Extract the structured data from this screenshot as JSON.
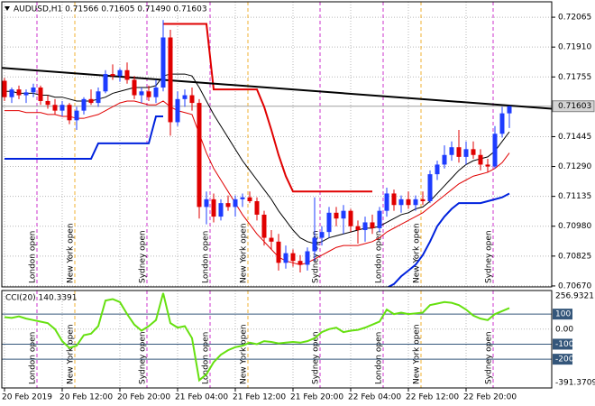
{
  "chart_data": [
    {
      "type": "candlestick",
      "title": "AUDUSD,H1  0.71566 0.71605 0.71490 0.71603",
      "open": [
        0.71735,
        0.7165,
        0.7169,
        0.7166,
        0.71675,
        0.717,
        0.7163,
        0.7161,
        0.7158,
        0.7161,
        0.7153,
        0.7158,
        0.7164,
        0.7162,
        0.7168,
        0.7177,
        0.7176,
        0.7179,
        0.7174,
        0.7166,
        0.7168,
        0.7165,
        0.717,
        0.7196,
        0.7152,
        0.7164,
        0.7166,
        0.7162,
        0.7108,
        0.7112,
        0.7103,
        0.711,
        0.7108,
        0.7112,
        0.7113,
        0.7111,
        0.7104,
        0.7092,
        0.709,
        0.7079,
        0.7084,
        0.708,
        0.7078,
        0.7085,
        0.7092,
        0.7095,
        0.7105,
        0.7102,
        0.7106,
        0.7098,
        0.7096,
        0.71,
        0.7097,
        0.7106,
        0.7115,
        0.7109,
        0.7112,
        0.7109,
        0.7112,
        0.7111,
        0.7125,
        0.713,
        0.7135,
        0.7139,
        0.7134,
        0.7138,
        0.7135,
        0.713,
        0.7129,
        0.7146,
        0.71566
      ],
      "high": [
        0.7175,
        0.717,
        0.7171,
        0.7169,
        0.7172,
        0.7171,
        0.7166,
        0.7164,
        0.7163,
        0.7162,
        0.716,
        0.7165,
        0.7169,
        0.717,
        0.7179,
        0.7182,
        0.718,
        0.7183,
        0.7176,
        0.717,
        0.7171,
        0.7174,
        0.7205,
        0.72,
        0.7168,
        0.7169,
        0.717,
        0.7164,
        0.7116,
        0.7115,
        0.7112,
        0.7114,
        0.7114,
        0.7115,
        0.7116,
        0.7113,
        0.7106,
        0.7096,
        0.7094,
        0.7088,
        0.7086,
        0.7083,
        0.7087,
        0.7113,
        0.7098,
        0.7108,
        0.7108,
        0.7109,
        0.7107,
        0.7101,
        0.7103,
        0.7104,
        0.7108,
        0.7118,
        0.7117,
        0.7114,
        0.7116,
        0.7114,
        0.7116,
        0.7127,
        0.7132,
        0.714,
        0.7142,
        0.7148,
        0.7142,
        0.7142,
        0.7138,
        0.7133,
        0.715,
        0.716,
        0.71605
      ],
      "low": [
        0.7163,
        0.7162,
        0.7164,
        0.7162,
        0.7165,
        0.7161,
        0.7159,
        0.7156,
        0.7155,
        0.7151,
        0.7148,
        0.7156,
        0.7161,
        0.716,
        0.7167,
        0.7174,
        0.7173,
        0.7172,
        0.7164,
        0.7162,
        0.7163,
        0.7162,
        0.7168,
        0.7145,
        0.715,
        0.716,
        0.7158,
        0.7102,
        0.7099,
        0.71,
        0.7101,
        0.7106,
        0.7103,
        0.7108,
        0.711,
        0.7101,
        0.7088,
        0.7086,
        0.7075,
        0.7076,
        0.7077,
        0.7074,
        0.7075,
        0.708,
        0.7088,
        0.7092,
        0.7098,
        0.7094,
        0.7095,
        0.7089,
        0.709,
        0.7094,
        0.7095,
        0.7103,
        0.7106,
        0.7105,
        0.7107,
        0.7106,
        0.7109,
        0.711,
        0.7122,
        0.7128,
        0.7132,
        0.7131,
        0.713,
        0.7133,
        0.7127,
        0.7126,
        0.7128,
        0.7144,
        0.7149
      ],
      "close": [
        0.7165,
        0.7169,
        0.7166,
        0.71675,
        0.717,
        0.7163,
        0.7161,
        0.7158,
        0.7161,
        0.7153,
        0.7158,
        0.7164,
        0.7162,
        0.7168,
        0.7177,
        0.7176,
        0.7179,
        0.7174,
        0.7166,
        0.7168,
        0.7165,
        0.717,
        0.7196,
        0.7152,
        0.7164,
        0.7166,
        0.7162,
        0.7108,
        0.7112,
        0.7103,
        0.711,
        0.7108,
        0.7112,
        0.7113,
        0.7111,
        0.7104,
        0.7092,
        0.709,
        0.7079,
        0.7084,
        0.708,
        0.7078,
        0.7085,
        0.7092,
        0.7095,
        0.7105,
        0.7102,
        0.7106,
        0.7098,
        0.7096,
        0.71,
        0.7097,
        0.7106,
        0.7115,
        0.7109,
        0.7112,
        0.7109,
        0.7112,
        0.7111,
        0.7125,
        0.713,
        0.7135,
        0.7139,
        0.7134,
        0.7138,
        0.7135,
        0.713,
        0.7129,
        0.7146,
        0.71566,
        0.71603
      ],
      "up_color": "#1e3cff",
      "down_color": "#e00000",
      "last_price": 0.71603,
      "overlays": [
        {
          "color": "#000000",
          "width": 1,
          "values": [
            0.7168,
            0.7168,
            0.7167,
            0.7167,
            0.7167,
            0.7166,
            0.7166,
            0.7165,
            0.7165,
            0.7164,
            0.7163,
            0.7163,
            0.7163,
            0.7164,
            0.7165,
            0.7167,
            0.7168,
            0.7169,
            0.717,
            0.717,
            0.717,
            0.7171,
            0.7176,
            0.7177,
            0.7177,
            0.7177,
            0.7176,
            0.717,
            0.7163,
            0.7156,
            0.715,
            0.7144,
            0.7138,
            0.7132,
            0.7127,
            0.7122,
            0.7117,
            0.7112,
            0.7106,
            0.7101,
            0.7096,
            0.7092,
            0.709,
            0.7089,
            0.709,
            0.7092,
            0.7093,
            0.7094,
            0.7095,
            0.7096,
            0.7097,
            0.7097,
            0.7098,
            0.71,
            0.7102,
            0.7104,
            0.7105,
            0.7107,
            0.7108,
            0.7111,
            0.7115,
            0.7119,
            0.7123,
            0.7127,
            0.713,
            0.7132,
            0.7133,
            0.7134,
            0.7137,
            0.7142,
            0.7147
          ]
        },
        {
          "color": "#e00000",
          "width": 1,
          "values": [
            0.7158,
            0.7158,
            0.7158,
            0.7157,
            0.7157,
            0.7157,
            0.7156,
            0.7156,
            0.7155,
            0.7155,
            0.7154,
            0.7154,
            0.7155,
            0.7156,
            0.7158,
            0.716,
            0.7162,
            0.7163,
            0.7163,
            0.7162,
            0.7161,
            0.7161,
            0.7163,
            0.716,
            0.7158,
            0.7157,
            0.7156,
            0.7146,
            0.7136,
            0.7128,
            0.7122,
            0.7116,
            0.711,
            0.7104,
            0.7099,
            0.7094,
            0.709,
            0.7086,
            0.7082,
            0.708,
            0.7079,
            0.7078,
            0.7079,
            0.7081,
            0.7083,
            0.7085,
            0.7087,
            0.7088,
            0.7088,
            0.7088,
            0.7089,
            0.709,
            0.7092,
            0.7095,
            0.7097,
            0.7099,
            0.7101,
            0.7103,
            0.7105,
            0.7108,
            0.7111,
            0.7114,
            0.7117,
            0.712,
            0.7122,
            0.7124,
            0.7125,
            0.7126,
            0.7128,
            0.7131,
            0.7136
          ]
        },
        {
          "color": "#e00000",
          "width": 2,
          "values": [
            null,
            null,
            null,
            null,
            null,
            null,
            null,
            null,
            null,
            null,
            null,
            null,
            null,
            null,
            null,
            null,
            null,
            null,
            null,
            null,
            null,
            null,
            0.7203,
            0.7203,
            0.7203,
            0.7203,
            0.7203,
            0.7203,
            0.7203,
            0.7169,
            0.7169,
            0.7169,
            0.7169,
            0.7169,
            0.7169,
            0.7169,
            0.716,
            0.7148,
            0.7135,
            0.7124,
            0.7116,
            0.7116,
            0.7116,
            0.7116,
            0.7116,
            0.7116,
            0.7116,
            0.7116,
            0.7116,
            0.7116,
            0.7116,
            0.7116,
            null,
            null,
            null,
            null,
            null,
            null,
            null,
            null,
            null,
            null,
            null,
            null,
            null,
            null,
            null,
            null,
            null,
            null,
            null
          ]
        },
        {
          "color": "#0022dd",
          "width": 2,
          "values": [
            0.7133,
            0.7133,
            0.7133,
            0.7133,
            0.7133,
            0.7133,
            0.7133,
            0.7133,
            0.7133,
            0.7133,
            0.7133,
            0.7133,
            0.7133,
            0.7141,
            0.7141,
            0.7141,
            0.7141,
            0.7141,
            0.7141,
            0.7141,
            0.7141,
            0.7155,
            0.7155,
            null,
            null,
            null,
            null,
            null,
            null,
            null,
            null,
            null,
            null,
            null,
            null,
            null,
            null,
            null,
            null,
            null,
            null,
            null,
            null,
            null,
            null,
            null,
            null,
            null,
            null,
            null,
            null,
            null,
            null,
            0.7066,
            0.7068,
            0.7072,
            0.7075,
            0.7078,
            0.7083,
            0.709,
            0.7098,
            0.7103,
            0.7107,
            0.711,
            0.711,
            0.711,
            0.711,
            0.7111,
            0.7112,
            0.7113,
            0.7115
          ]
        }
      ],
      "trendline": {
        "x": [
          -0.375,
          75.875
        ],
        "values": [
          0.71802,
          0.7159
        ],
        "color": "#000000"
      },
      "ylim": [
        0.70665,
        0.72145
      ],
      "yticks": [
        {
          "value": 0.7067,
          "label": "0.70670"
        },
        0.70825,
        {
          "value": 0.7098,
          "label": "0.70980"
        },
        0.71135,
        {
          "value": 0.7129,
          "label": "0.71290"
        },
        0.71445,
        0.71755,
        {
          "value": 0.7191,
          "label": "0.71910"
        },
        0.72065
      ],
      "xticks": [
        {
          "value": 0,
          "label": "20 Feb 2019"
        },
        {
          "value": 8,
          "label": "20 Feb 12:00"
        },
        {
          "value": 16,
          "label": "20 Feb 20:00"
        },
        {
          "value": 24,
          "label": "21 Feb 04:00"
        },
        {
          "value": 32,
          "label": "21 Feb 12:00"
        },
        {
          "value": 40,
          "label": "21 Feb 20:00"
        },
        {
          "value": 48,
          "label": "22 Feb 04:00"
        },
        {
          "value": 56,
          "label": "22 Feb 12:00"
        },
        {
          "value": 64,
          "label": "22 Feb 20:00"
        }
      ],
      "sessions": [
        {
          "label": "London open",
          "x": 4.5,
          "color": "#cc33cc"
        },
        {
          "label": "New York open",
          "x": 9.75,
          "color": "#f0b030"
        },
        {
          "label": "Sydney open",
          "x": 19.75,
          "color": "#cc33cc"
        },
        {
          "label": "London open",
          "x": 28.5,
          "color": "#cc33cc"
        },
        {
          "label": "New York open",
          "x": 33.75,
          "color": "#f0b030"
        },
        {
          "label": "Sydney open",
          "x": 43.75,
          "color": "#cc33cc"
        },
        {
          "label": "London open",
          "x": 52.5,
          "color": "#cc33cc"
        },
        {
          "label": "New York open",
          "x": 57.75,
          "color": "#f0b030"
        },
        {
          "label": "Sydney open",
          "x": 67.75,
          "color": "#cc33cc"
        }
      ],
      "grid": true
    },
    {
      "type": "line",
      "title": "CCI(20) 140.3391",
      "color": "#66e010",
      "values": [
        80,
        75,
        85,
        70,
        60,
        50,
        40,
        0,
        -80,
        -125,
        -110,
        -40,
        -30,
        20,
        190,
        200,
        180,
        100,
        30,
        -10,
        20,
        60,
        240,
        40,
        10,
        20,
        -60,
        -340,
        -300,
        -220,
        -170,
        -140,
        -120,
        -110,
        -90,
        -100,
        -80,
        -85,
        -95,
        -90,
        -85,
        -90,
        -80,
        -60,
        -20,
        0,
        10,
        -20,
        -10,
        -5,
        10,
        30,
        50,
        130,
        100,
        110,
        100,
        105,
        110,
        160,
        170,
        180,
        175,
        160,
        130,
        90,
        70,
        60,
        100,
        120,
        140.3391
      ],
      "ylim": [
        -391.3709,
        256.9321
      ],
      "yticks": [
        100,
        {
          "value": 0,
          "label": "0.00"
        },
        -100,
        -200
      ],
      "level_color": "#34567a",
      "grid": true
    }
  ]
}
